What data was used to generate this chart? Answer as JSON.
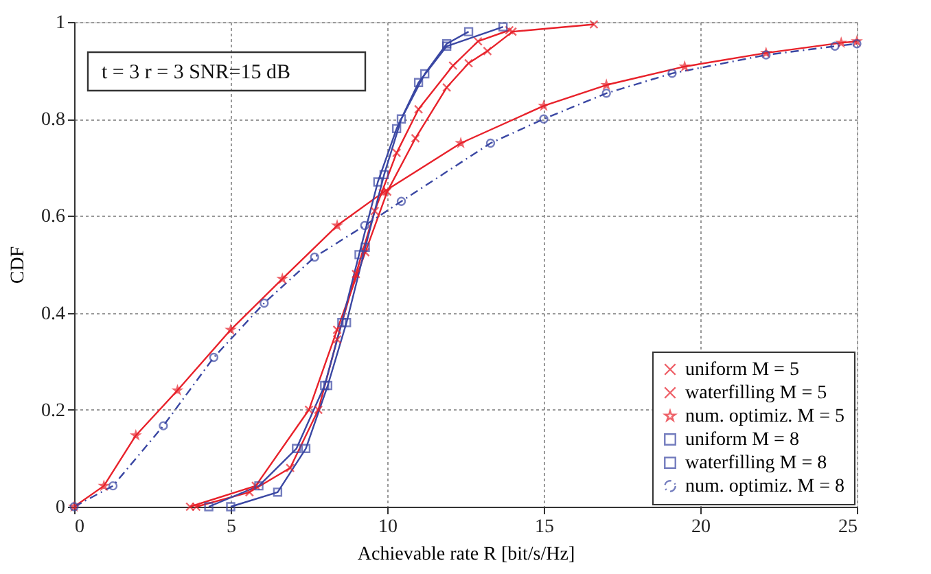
{
  "chart_data": {
    "type": "line",
    "xlabel": "Achievable rate R [bit/s/Hz]",
    "ylabel": "CDF",
    "annotations": [
      "t = 3 r = 3 SNR=15 dB"
    ],
    "xlim": [
      0,
      25
    ],
    "xticks": [
      0,
      5,
      10,
      15,
      20,
      25
    ],
    "ylim": [
      0,
      1
    ],
    "yticks": [
      0,
      0.2,
      0.4,
      0.6,
      0.8,
      1
    ],
    "grid": true,
    "legend": "bottom right",
    "series": [
      {
        "name": "uniform M = 5",
        "color": "#e8212a",
        "marker": "cross",
        "line_style": "solid",
        "x": [
          3.9,
          5.6,
          6.9,
          7.8,
          8.4,
          9.0,
          9.6,
          10.3,
          11.0,
          12.1,
          12.9,
          13.9
        ],
        "values": [
          0,
          0.03,
          0.08,
          0.2,
          0.345,
          0.48,
          0.61,
          0.73,
          0.82,
          0.91,
          0.96,
          0.983
        ]
      },
      {
        "name": "waterfilling M = 5",
        "color": "#e8212a",
        "marker": "cross",
        "line_style": "solid",
        "x": [
          3.7,
          5.8,
          7.5,
          8.4,
          9.3,
          10.0,
          10.9,
          11.9,
          12.6,
          13.2,
          14.0,
          16.6
        ],
        "values": [
          0,
          0.043,
          0.2,
          0.365,
          0.525,
          0.65,
          0.76,
          0.865,
          0.915,
          0.94,
          0.98,
          0.995
        ]
      },
      {
        "name": "num. optimiz. M = 5",
        "color": "#e8212a",
        "marker": "star",
        "line_style": "solid",
        "x": [
          0,
          0.95,
          1.97,
          3.3,
          5.0,
          6.65,
          8.4,
          9.9,
          12.35,
          15.0,
          17.0,
          19.5,
          22.1,
          24.5,
          25
        ],
        "values": [
          0,
          0.043,
          0.147,
          0.24,
          0.365,
          0.47,
          0.58,
          0.65,
          0.75,
          0.827,
          0.87,
          0.908,
          0.936,
          0.957,
          0.96
        ]
      },
      {
        "name": "uniform M = 8",
        "color": "#3a47a3",
        "marker": "square",
        "line_style": "solid",
        "x": [
          4.3,
          5.9,
          7.1,
          8.0,
          8.55,
          9.1,
          9.7,
          10.3,
          11.0,
          11.9,
          13.7
        ],
        "values": [
          0,
          0.043,
          0.12,
          0.25,
          0.38,
          0.52,
          0.67,
          0.78,
          0.875,
          0.95,
          0.99
        ]
      },
      {
        "name": "waterfilling M = 8",
        "color": "#3a47a3",
        "marker": "square",
        "line_style": "solid",
        "x": [
          5.0,
          6.5,
          7.4,
          8.1,
          8.7,
          9.3,
          9.9,
          10.45,
          11.2,
          11.9,
          12.6
        ],
        "values": [
          0,
          0.03,
          0.12,
          0.25,
          0.38,
          0.535,
          0.685,
          0.8,
          0.893,
          0.955,
          0.98
        ]
      },
      {
        "name": "num. optimiz. M = 8",
        "color": "#3a47a3",
        "marker": "circle",
        "line_style": "dashed",
        "x": [
          0,
          1.24,
          2.85,
          4.46,
          6.07,
          7.68,
          9.28,
          10.45,
          13.3,
          15.0,
          17.0,
          19.1,
          22.1,
          24.3,
          25
        ],
        "values": [
          0,
          0.043,
          0.167,
          0.308,
          0.42,
          0.515,
          0.58,
          0.63,
          0.75,
          0.8,
          0.853,
          0.894,
          0.932,
          0.95,
          0.955
        ]
      }
    ]
  }
}
